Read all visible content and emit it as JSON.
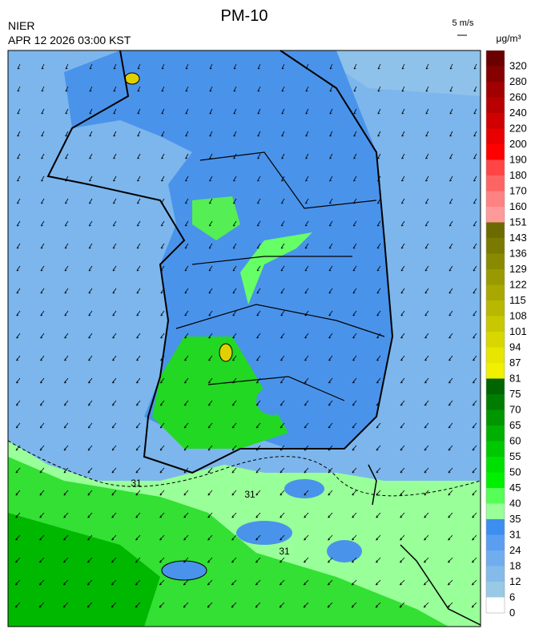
{
  "header": {
    "title": "PM-10",
    "agency": "NIER",
    "timestamp": "APR 12 2026 03:00 KST",
    "wind_scale": "5 m/s",
    "unit": "μg/m³"
  },
  "map": {
    "contour_labels": [
      "31",
      "31",
      "31"
    ]
  },
  "legend": {
    "levels": [
      {
        "value": 320,
        "color": "#6b0000"
      },
      {
        "value": 280,
        "color": "#850000"
      },
      {
        "value": 260,
        "color": "#a00000"
      },
      {
        "value": 240,
        "color": "#b80000"
      },
      {
        "value": 220,
        "color": "#d00000"
      },
      {
        "value": 200,
        "color": "#e80000"
      },
      {
        "value": 190,
        "color": "#ff0000"
      },
      {
        "value": 180,
        "color": "#ff4545"
      },
      {
        "value": 170,
        "color": "#ff6464"
      },
      {
        "value": 160,
        "color": "#ff8282"
      },
      {
        "value": 151,
        "color": "#ff9a9a"
      },
      {
        "value": 143,
        "color": "#6b6b00"
      },
      {
        "value": 136,
        "color": "#7a7a00"
      },
      {
        "value": 129,
        "color": "#8a8a00"
      },
      {
        "value": 122,
        "color": "#999900"
      },
      {
        "value": 115,
        "color": "#a8a800"
      },
      {
        "value": 108,
        "color": "#b8b800"
      },
      {
        "value": 101,
        "color": "#c8c800"
      },
      {
        "value": 94,
        "color": "#d8d800"
      },
      {
        "value": 87,
        "color": "#e6e600"
      },
      {
        "value": 81,
        "color": "#f0f000"
      },
      {
        "value": 75,
        "color": "#006400"
      },
      {
        "value": 70,
        "color": "#007d00"
      },
      {
        "value": 65,
        "color": "#009600"
      },
      {
        "value": 60,
        "color": "#00b000"
      },
      {
        "value": 55,
        "color": "#00c800"
      },
      {
        "value": 50,
        "color": "#00e000"
      },
      {
        "value": 45,
        "color": "#00f000"
      },
      {
        "value": 40,
        "color": "#55ff55"
      },
      {
        "value": 35,
        "color": "#99ff99"
      },
      {
        "value": 31,
        "color": "#3c8ff0"
      },
      {
        "value": 24,
        "color": "#5a9ef0"
      },
      {
        "value": 18,
        "color": "#6fadee"
      },
      {
        "value": 12,
        "color": "#85bbea"
      },
      {
        "value": 6,
        "color": "#99c9e6"
      },
      {
        "value": 0,
        "color": "#ffffff"
      }
    ]
  }
}
